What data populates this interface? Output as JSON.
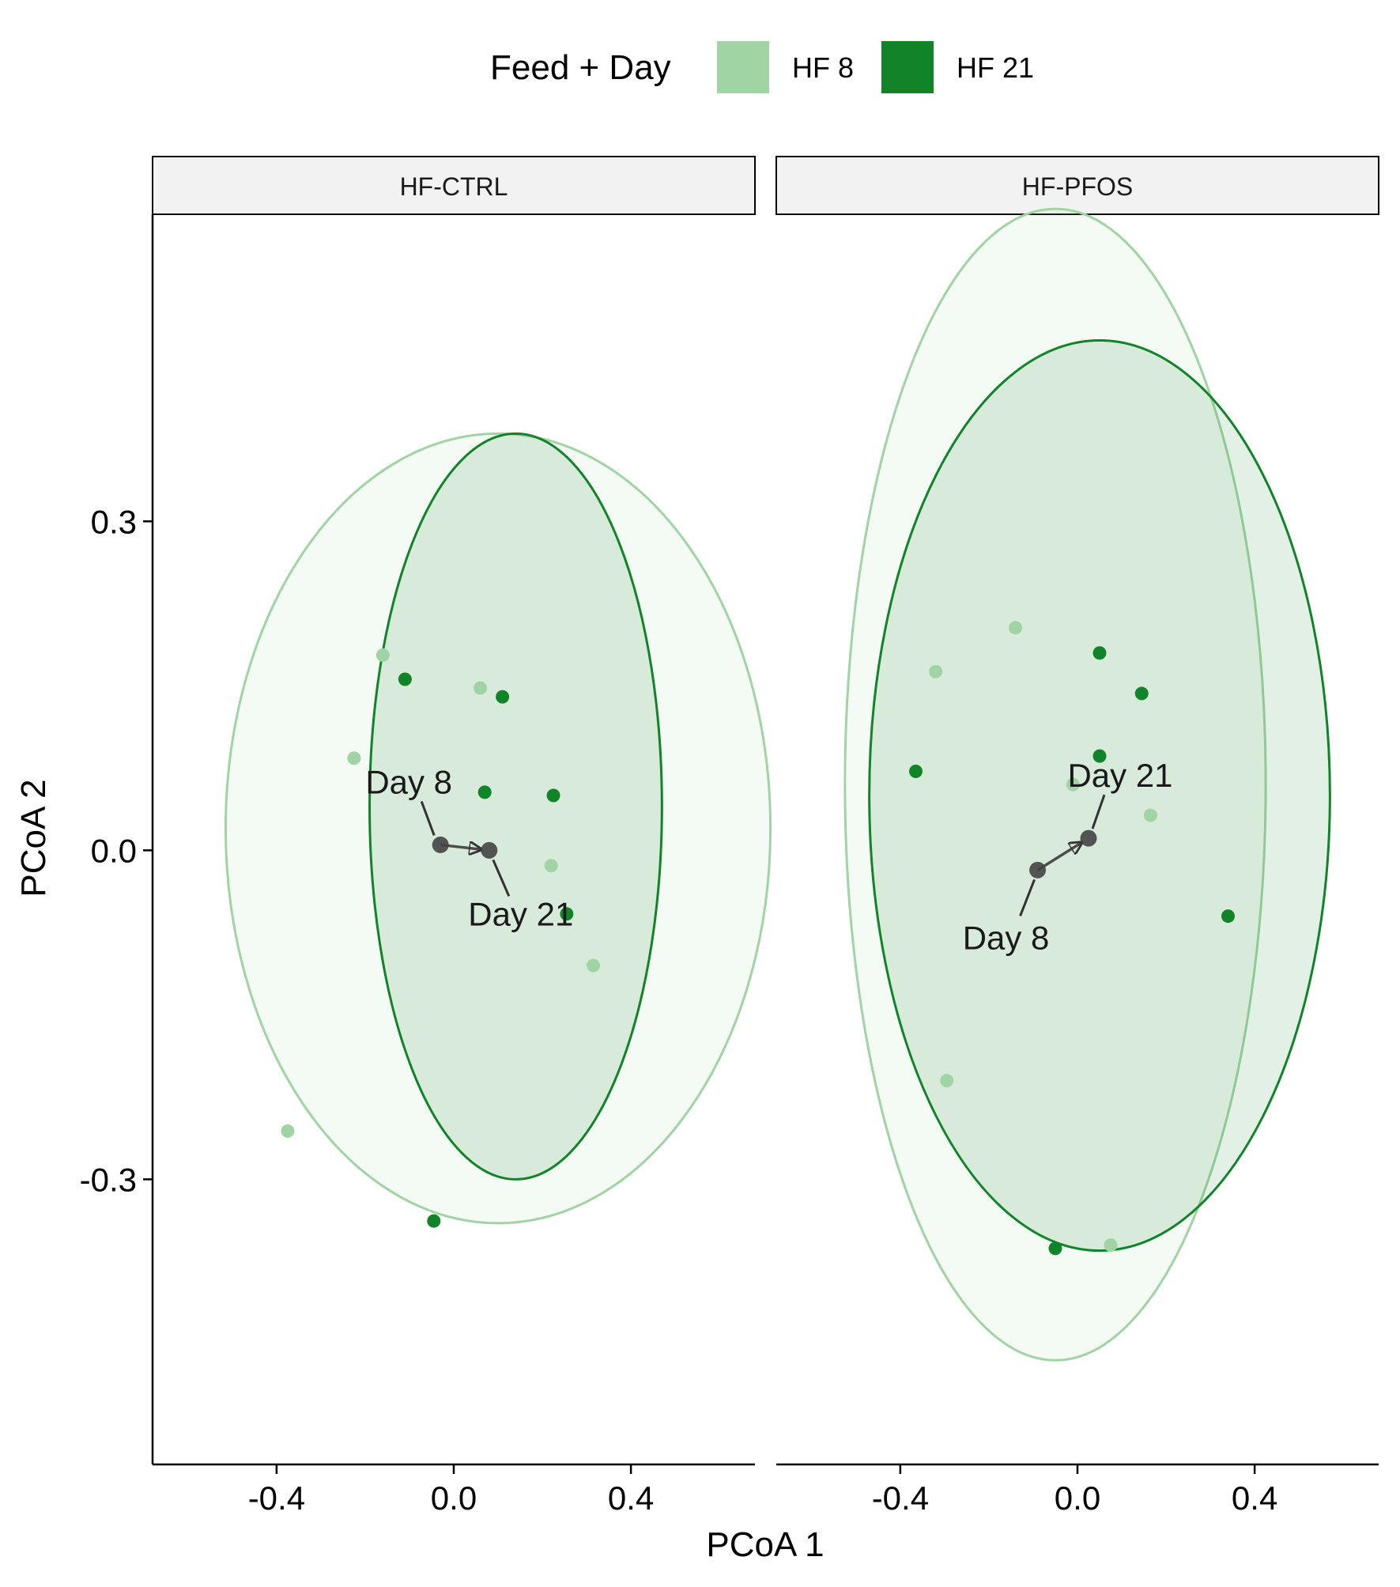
{
  "chart_data": {
    "type": "scatter",
    "title": "",
    "xlabel": "PCoA 1",
    "ylabel": "PCoA 2",
    "legend": {
      "title": "Feed + Day",
      "position": "top",
      "entries": [
        {
          "label": "HF 8",
          "color": "#a1d4a5"
        },
        {
          "label": "HF 21",
          "color": "#11842a"
        }
      ]
    },
    "xlim": [
      -0.68,
      0.68
    ],
    "ylim": [
      -0.56,
      0.58
    ],
    "x_ticks": [
      -0.4,
      0.0,
      0.4
    ],
    "x_tick_labels": [
      "-0.4",
      "0.0",
      "0.4"
    ],
    "y_ticks": [
      0.3,
      0.0,
      -0.3
    ],
    "y_tick_labels": [
      "0.3",
      "0.0",
      "-0.3"
    ],
    "grid": false,
    "colors": {
      "hf8": "#a1d4a5",
      "hf21": "#11842a",
      "centroid": "#444444",
      "strip_fill": "#f2f2f2"
    },
    "facets": [
      {
        "name": "HF-CTRL",
        "series": [
          {
            "name": "HF 8",
            "points": [
              [
                -0.16,
                0.178
              ],
              [
                0.06,
                0.148
              ],
              [
                -0.225,
                0.084
              ],
              [
                0.22,
                -0.014
              ],
              [
                0.315,
                -0.105
              ],
              [
                -0.375,
                -0.256
              ]
            ]
          },
          {
            "name": "HF 21",
            "points": [
              [
                -0.11,
                0.156
              ],
              [
                0.11,
                0.14
              ],
              [
                0.07,
                0.053
              ],
              [
                0.225,
                0.05
              ],
              [
                0.255,
                -0.058
              ],
              [
                -0.045,
                -0.338
              ]
            ]
          }
        ],
        "ellipses": [
          {
            "series": "HF 8",
            "cx": 0.1,
            "cy": 0.02,
            "rx": 0.615,
            "ry": 0.36,
            "angle_deg": 0
          },
          {
            "series": "HF 21",
            "cx": 0.14,
            "cy": 0.04,
            "rx": 0.33,
            "ry": 0.34,
            "angle_deg": 0
          }
        ],
        "trajectory": {
          "from": {
            "label": "Day 8",
            "x": -0.03,
            "y": 0.005
          },
          "to": {
            "label": "Day 21",
            "x": 0.08,
            "y": 0.0
          }
        }
      },
      {
        "name": "HF-PFOS",
        "series": [
          {
            "name": "HF 8",
            "points": [
              [
                -0.14,
                0.203
              ],
              [
                -0.32,
                0.163
              ],
              [
                -0.01,
                0.06
              ],
              [
                0.165,
                0.032
              ],
              [
                -0.295,
                -0.21
              ],
              [
                0.075,
                -0.36
              ]
            ]
          },
          {
            "name": "HF 21",
            "points": [
              [
                0.05,
                0.18
              ],
              [
                0.145,
                0.143
              ],
              [
                0.05,
                0.086
              ],
              [
                -0.365,
                0.072
              ],
              [
                0.34,
                -0.06
              ],
              [
                -0.05,
                -0.363
              ]
            ]
          }
        ],
        "ellipses": [
          {
            "series": "HF 8",
            "cx": -0.05,
            "cy": 0.06,
            "rx": 0.475,
            "ry": 0.525,
            "angle_deg": 0
          },
          {
            "series": "HF 21",
            "cx": 0.05,
            "cy": 0.05,
            "rx": 0.52,
            "ry": 0.415,
            "angle_deg": 0
          }
        ],
        "trajectory": {
          "from": {
            "label": "Day 8",
            "x": -0.09,
            "y": -0.018
          },
          "to": {
            "label": "Day 21",
            "x": 0.025,
            "y": 0.011
          }
        }
      }
    ]
  }
}
